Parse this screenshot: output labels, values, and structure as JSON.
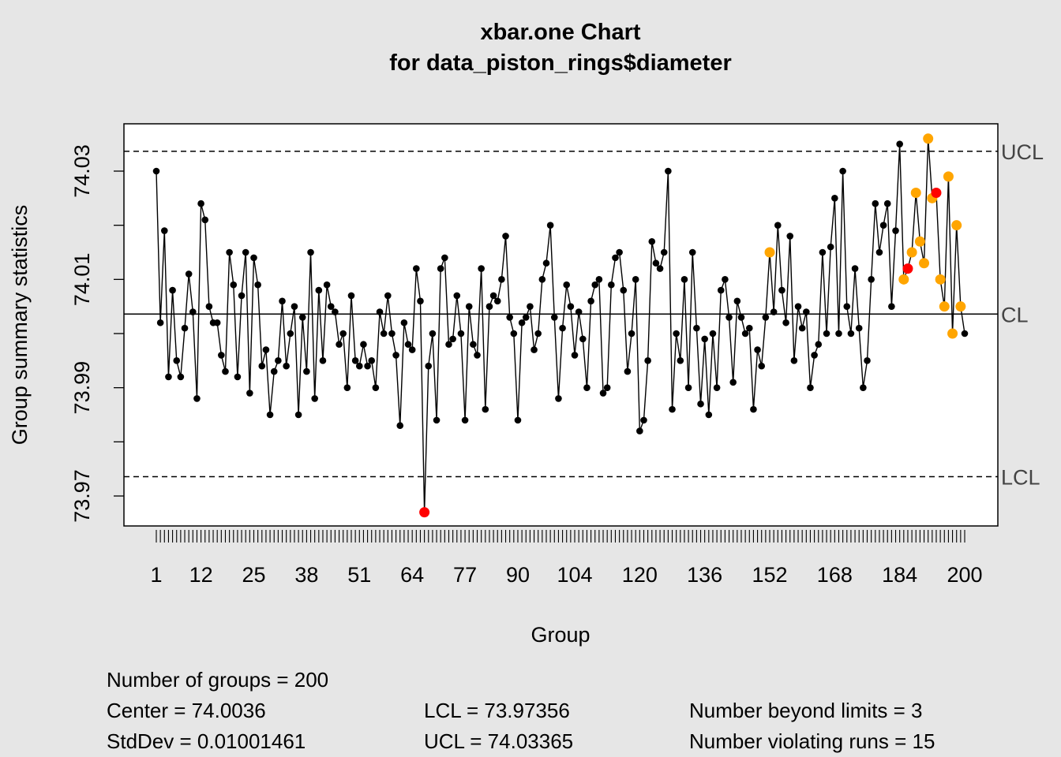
{
  "chart_data": {
    "type": "line",
    "title": "xbar.one Chart",
    "subtitle": "for data_piston_rings$diameter",
    "xlabel": "Group",
    "ylabel": "Group summary statistics",
    "x_tick_labels": [
      "1",
      "12",
      "25",
      "38",
      "51",
      "64",
      "77",
      "90",
      "104",
      "120",
      "136",
      "152",
      "168",
      "184",
      "200"
    ],
    "y_tick_labels": [
      "73.97",
      "73.99",
      "74.01",
      "74.03"
    ],
    "ylim": [
      73.961,
      74.035
    ],
    "xlim": [
      1,
      200
    ],
    "control_lines": {
      "UCL": {
        "label": "UCL",
        "value": 74.03365
      },
      "CL": {
        "label": "CL",
        "value": 74.0036
      },
      "LCL": {
        "label": "LCL",
        "value": 73.97356
      }
    },
    "colors": {
      "point": "#000000",
      "beyond_limits": "#ff0000",
      "violating_runs": "#ffa500",
      "background": "#e6e6e6",
      "plot_area": "#ffffff"
    },
    "beyond_limit_groups": [
      67,
      186,
      193
    ],
    "violating_run_groups": [
      152,
      185,
      187,
      188,
      189,
      190,
      191,
      192,
      194,
      195,
      196,
      197,
      198,
      199
    ],
    "series": [
      {
        "values": [
          74.03,
          74.002,
          74.019,
          73.992,
          74.008,
          73.995,
          73.992,
          74.001,
          74.011,
          74.004,
          73.988,
          74.024,
          74.021,
          74.005,
          74.002,
          74.002,
          73.996,
          73.993,
          74.015,
          74.009,
          73.992,
          74.007,
          74.015,
          73.989,
          74.014,
          74.009,
          73.994,
          73.997,
          73.985,
          73.993,
          73.995,
          74.006,
          73.994,
          74.0,
          74.005,
          73.985,
          74.003,
          73.993,
          74.015,
          73.988,
          74.008,
          73.995,
          74.009,
          74.005,
          74.004,
          73.998,
          74.0,
          73.99,
          74.007,
          73.995,
          73.994,
          73.998,
          73.994,
          73.995,
          73.99,
          74.004,
          74.0,
          74.007,
          74.0,
          73.996,
          73.983,
          74.002,
          73.998,
          73.997,
          74.012,
          74.006,
          73.967,
          73.994,
          74.0,
          73.984,
          74.012,
          74.014,
          73.998,
          73.999,
          74.007,
          74.0,
          73.984,
          74.005,
          73.998,
          73.996,
          74.012,
          73.986,
          74.005,
          74.007,
          74.006,
          74.01,
          74.018,
          74.003,
          74.0,
          73.984,
          74.002,
          74.003,
          74.005,
          73.997,
          74.0,
          74.01,
          74.013,
          74.02,
          74.003,
          73.988,
          74.001,
          74.009,
          74.005,
          73.996,
          74.004,
          73.999,
          73.99,
          74.006,
          74.009,
          74.01,
          73.989,
          73.99,
          74.009,
          74.014,
          74.015,
          74.008,
          73.993,
          74.0,
          74.01,
          73.982,
          73.984,
          73.995,
          74.017,
          74.013,
          74.012,
          74.015,
          74.03,
          73.986,
          74.0,
          73.995,
          74.01,
          73.99,
          74.015,
          74.001,
          73.987,
          73.999,
          73.985,
          74.0,
          73.99,
          74.008,
          74.01,
          74.003,
          73.991,
          74.006,
          74.003,
          74.0,
          74.001,
          73.986,
          73.997,
          73.994,
          74.003,
          74.015,
          74.004,
          74.02,
          74.008,
          74.002,
          74.018,
          73.995,
          74.005,
          74.001,
          74.004,
          73.99,
          73.996,
          73.998,
          74.015,
          74.0,
          74.016,
          74.025,
          74.0,
          74.03,
          74.005,
          74.0,
          74.012,
          74.001,
          73.99,
          73.995,
          74.01,
          74.024,
          74.015,
          74.02,
          74.024,
          74.005,
          74.019,
          74.035,
          74.01,
          74.012,
          74.015,
          74.026,
          74.017,
          74.013,
          74.036,
          74.025,
          74.026,
          74.01,
          74.005,
          74.029,
          74.0,
          74.02,
          74.005,
          74.0
        ]
      }
    ]
  },
  "stats": {
    "number_of_groups": "Number of groups = 200",
    "center": "Center = 74.0036",
    "stddev": "StdDev = 0.01001461",
    "lcl": "LCL = 73.97356",
    "ucl": "UCL = 74.03365",
    "beyond_limits": "Number beyond limits = 3",
    "violating_runs": "Number violating runs = 15"
  }
}
